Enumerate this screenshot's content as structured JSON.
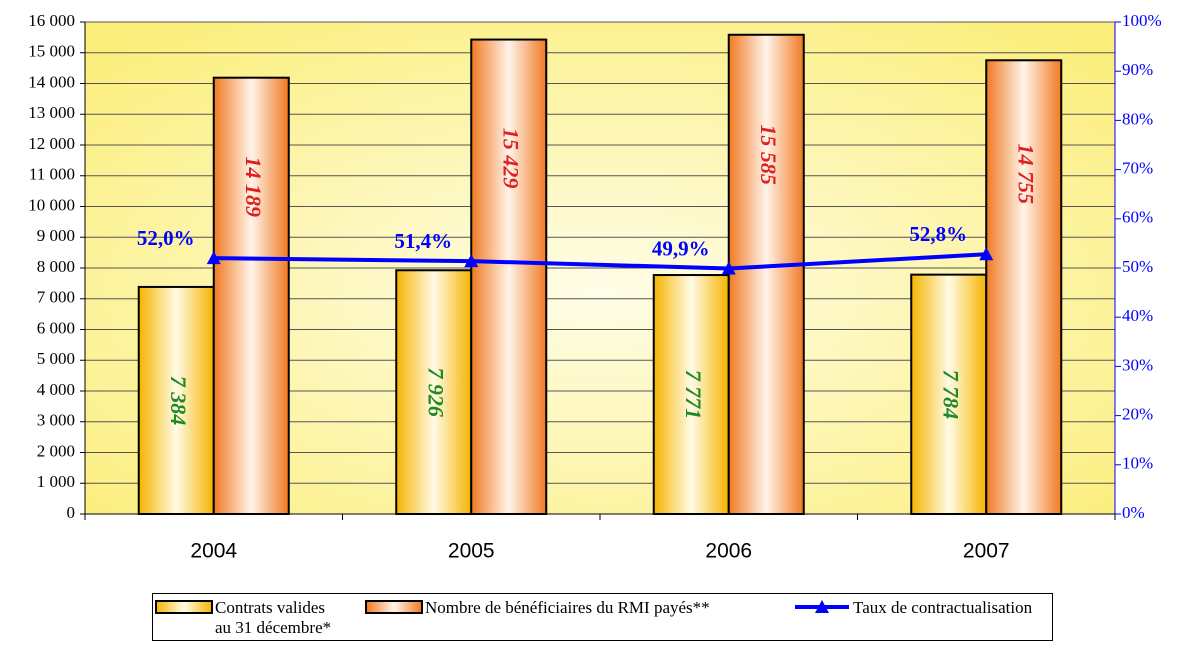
{
  "chart_data": {
    "type": "bar",
    "categories": [
      "2004",
      "2005",
      "2006",
      "2007"
    ],
    "series": [
      {
        "name": "Contrats valides au 31 décembre*",
        "color": "#f5b400",
        "values": [
          7384,
          7926,
          7771,
          7784
        ],
        "value_labels": [
          "7 384",
          "7 926",
          "7 771",
          "7 784"
        ]
      },
      {
        "name": "Nombre de bénéficiaires du RMI payés**",
        "color": "#f07a22",
        "values": [
          14189,
          15429,
          15585,
          14755
        ],
        "value_labels": [
          "14 189",
          "15 429",
          "15 585",
          "14 755"
        ]
      },
      {
        "name": "Taux de contractualisation",
        "type": "line",
        "axis": "y2",
        "color": "#0000ff",
        "values": [
          52.0,
          51.4,
          49.9,
          52.8
        ],
        "value_labels": [
          "52,0%",
          "51,4%",
          "49,9%",
          "52,8%"
        ]
      }
    ],
    "ylim": [
      0,
      16000
    ],
    "yticks": [
      0,
      {
        "value": 1000,
        "label": "1 000"
      },
      {
        "value": 2000,
        "label": "2 000"
      },
      {
        "value": 3000,
        "label": "3 000"
      },
      {
        "value": 4000,
        "label": "4 000"
      },
      {
        "value": 5000,
        "label": "5 000"
      },
      {
        "value": 6000,
        "label": "6 000"
      },
      {
        "value": 7000,
        "label": "7 000"
      },
      {
        "value": 8000,
        "label": "8 000"
      },
      {
        "value": 9000,
        "label": "9 000"
      },
      {
        "value": 10000,
        "label": "10 000"
      },
      {
        "value": 11000,
        "label": "11 000"
      },
      {
        "value": 12000,
        "label": "12 000"
      },
      {
        "value": 13000,
        "label": "13 000"
      },
      {
        "value": 14000,
        "label": "14 000"
      },
      {
        "value": 15000,
        "label": "15 000"
      },
      {
        "value": 16000,
        "label": "16 000"
      }
    ],
    "y2lim": [
      0,
      100
    ],
    "y2ticks": [
      {
        "value": 0,
        "label": "0%"
      },
      {
        "value": 10,
        "label": "10%"
      },
      {
        "value": 20,
        "label": "20%"
      },
      {
        "value": 30,
        "label": "30%"
      },
      {
        "value": 40,
        "label": "40%"
      },
      {
        "value": 50,
        "label": "50%"
      },
      {
        "value": 60,
        "label": "60%"
      },
      {
        "value": 70,
        "label": "70%"
      },
      {
        "value": 80,
        "label": "80%"
      },
      {
        "value": 90,
        "label": "90%"
      },
      {
        "value": 100,
        "label": "100%"
      }
    ],
    "grid": true,
    "legend": "bottom"
  }
}
